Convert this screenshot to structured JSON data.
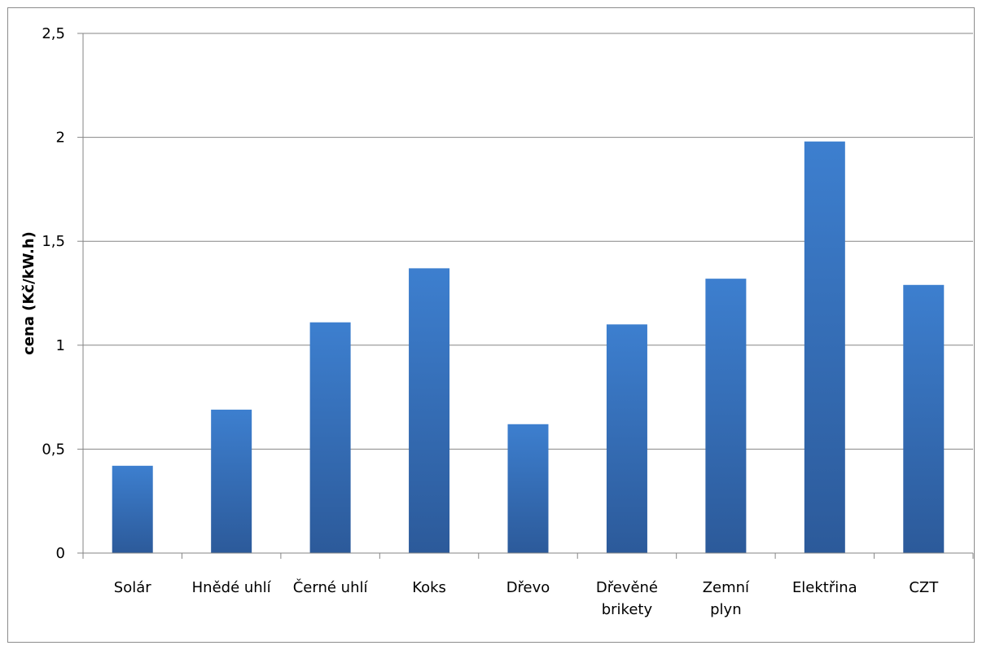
{
  "chart_data": {
    "type": "bar",
    "title": "",
    "xlabel": "",
    "ylabel": "cena (Kč/kW.h)",
    "ylim": [
      0,
      2.5
    ],
    "yticks": [
      "0",
      "0,5",
      "1",
      "1,5",
      "2",
      "2,5"
    ],
    "grid": true,
    "legend": "none",
    "categories": [
      [
        "Solár"
      ],
      [
        "Hnědé uhlí"
      ],
      [
        "Černé uhlí"
      ],
      [
        "Koks"
      ],
      [
        "Dřevo"
      ],
      [
        "Dřevěné",
        "brikety"
      ],
      [
        "Zemní",
        "plyn"
      ],
      [
        "Elektřina"
      ],
      [
        "CZT"
      ]
    ],
    "values": [
      0.42,
      0.69,
      1.11,
      1.37,
      0.62,
      1.1,
      1.32,
      1.98,
      1.29
    ],
    "colors": {
      "bar_top": "#3d7fcf",
      "bar_bottom": "#2c5a9a",
      "grid": "#868686",
      "axis": "#868686"
    }
  }
}
